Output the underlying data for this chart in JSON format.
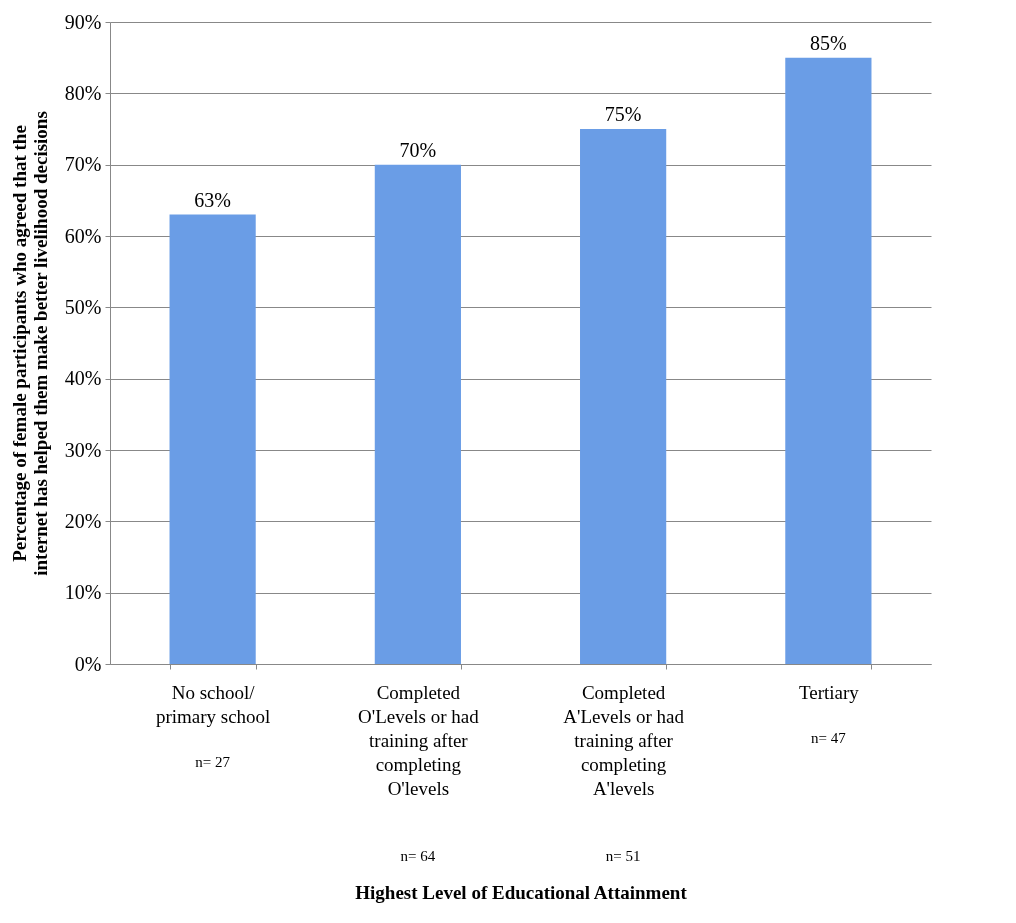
{
  "chart_data": {
    "type": "bar",
    "xlabel": "Highest Level of Educational Attainment",
    "ylabel": "Percentage of female participants who agreed that the internet has helped them make better livelihood decisions",
    "categories": [
      "No school/ primary school",
      "Completed O'Levels or had training after completing O'levels",
      "Completed A'Levels or had training after completing A'levels",
      "Tertiary"
    ],
    "values": [
      63,
      70,
      75,
      85
    ],
    "value_labels": [
      "63%",
      "70%",
      "75%",
      "85%"
    ],
    "color": "#6a9de6",
    "ylim": [
      0,
      90
    ],
    "yticks": [
      {
        "value": 0,
        "label": "0%"
      },
      {
        "value": 10,
        "label": "10%"
      },
      {
        "value": 20,
        "label": "20%"
      },
      {
        "value": 30,
        "label": "30%"
      },
      {
        "value": 40,
        "label": "40%"
      },
      {
        "value": 50,
        "label": "50%"
      },
      {
        "value": 60,
        "label": "60%"
      },
      {
        "value": 70,
        "label": "70%"
      },
      {
        "value": 80,
        "label": "80%"
      },
      {
        "value": 90,
        "label": "90%"
      }
    ],
    "grid": "y",
    "annotations": [
      "n= 27",
      "n= 64",
      "n= 51",
      "n= 47"
    ]
  }
}
